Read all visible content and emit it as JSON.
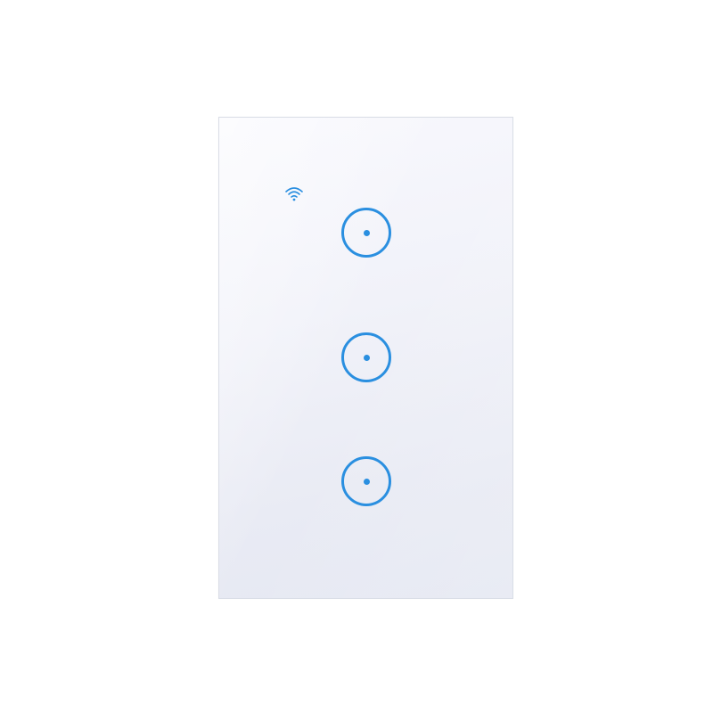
{
  "device": {
    "type": "smart touch wall switch",
    "indicator_icon": "wifi-icon",
    "accent_color": "#2a8fe0",
    "panel_color": "#f1f2f9"
  },
  "buttons": [
    {
      "icon": "power-ring-icon"
    },
    {
      "icon": "power-ring-icon"
    },
    {
      "icon": "power-ring-icon"
    }
  ]
}
